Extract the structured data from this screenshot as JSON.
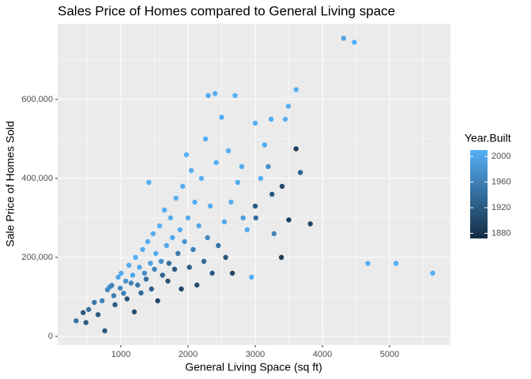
{
  "chart_data": {
    "type": "scatter",
    "title": "Sales Price of Homes compared to General Living space",
    "x_label": "General Living Space (sq ft)",
    "y_label": "Sale Price of Homes Sold",
    "xlim": [
      59,
      5906
    ],
    "ylim": [
      -22000,
      792000
    ],
    "xticks": [
      1000,
      2000,
      3000,
      4000,
      5000
    ],
    "yticks": [
      0,
      {
        "value": 200000,
        "label": "200,000"
      },
      {
        "value": 400000,
        "label": "400,000"
      },
      {
        "value": 600000,
        "label": "600,000"
      }
    ],
    "grid": true,
    "colorbar": {
      "title": "Year.Built",
      "limits": [
        1872,
        2010
      ],
      "ticks": [
        1880,
        1920,
        1960,
        2000
      ],
      "low": "#132B43",
      "high": "#56B1F7"
    },
    "x": [
      334,
      438,
      480,
      520,
      605,
      660,
      720,
      760,
      800,
      832,
      864,
      894,
      912,
      960,
      990,
      1004,
      1040,
      1072,
      1092,
      1120,
      1152,
      1176,
      1200,
      1218,
      1250,
      1276,
      1300,
      1324,
      1352,
      1376,
      1400,
      1416,
      1440,
      1456,
      1480,
      1500,
      1520,
      1548,
      1576,
      1600,
      1620,
      1648,
      1680,
      1700,
      1716,
      1740,
      1768,
      1800,
      1820,
      1850,
      1880,
      1900,
      1920,
      1948,
      1976,
      2000,
      2020,
      2048,
      2076,
      2100,
      2132,
      2160,
      2200,
      2236,
      2260,
      2290,
      2300,
      2330,
      2360,
      2402,
      2420,
      2450,
      2500,
      2540,
      2560,
      2600,
      2640,
      2660,
      2700,
      2740,
      2800,
      2820,
      2880,
      2945,
      3000,
      3082,
      3140,
      3194,
      3238,
      3390,
      3447,
      3493,
      3608,
      3500,
      3608,
      3672,
      3820,
      3400,
      3250,
      4316,
      4476,
      4676,
      5095,
      5642,
      3010,
      3280,
      3000
    ],
    "y": [
      39300,
      60000,
      35000,
      68000,
      86000,
      55000,
      90000,
      14000,
      118000,
      125000,
      129000,
      103000,
      80000,
      150000,
      122000,
      160000,
      109000,
      140000,
      95000,
      180000,
      135000,
      155000,
      62000,
      200000,
      130000,
      175000,
      110000,
      220000,
      160000,
      145000,
      240000,
      390000,
      185000,
      120000,
      260000,
      170000,
      210000,
      90000,
      280000,
      190000,
      155000,
      320000,
      230000,
      140000,
      185000,
      300000,
      250000,
      170000,
      350000,
      210000,
      270000,
      120000,
      380000,
      240000,
      460000,
      300000,
      175000,
      420000,
      220000,
      340000,
      130000,
      280000,
      400000,
      190000,
      500000,
      250000,
      610000,
      330000,
      160000,
      615000,
      440000,
      230000,
      555000,
      290000,
      200000,
      470000,
      340000,
      160000,
      610000,
      390000,
      430000,
      300000,
      270000,
      150000,
      540000,
      400000,
      485000,
      430000,
      550000,
      200000,
      550000,
      583000,
      625000,
      295000,
      475000,
      415000,
      285000,
      380000,
      360000,
      755000,
      745000,
      184750,
      184750,
      160000,
      300000,
      260000,
      330000
    ],
    "year": [
      1946,
      1920,
      1925,
      1948,
      1950,
      1920,
      1960,
      1920,
      1970,
      1975,
      1962,
      1958,
      1925,
      1999,
      1968,
      2005,
      1955,
      1980,
      1915,
      2004,
      1962,
      1998,
      1910,
      2006,
      1950,
      2002,
      1935,
      2007,
      1975,
      1940,
      2005,
      2008,
      1995,
      1925,
      2006,
      1965,
      2003,
      1900,
      2007,
      1972,
      1930,
      2008,
      2000,
      1915,
      1940,
      2006,
      2001,
      1920,
      2008,
      1955,
      2004,
      1900,
      2007,
      1980,
      2009,
      2005,
      1925,
      2008,
      1960,
      2006,
      1910,
      2003,
      2007,
      1935,
      2008,
      1970,
      2006,
      2005,
      1920,
      2008,
      2007,
      1945,
      2009,
      2002,
      1916,
      2006,
      2008,
      1900,
      2008,
      2004,
      2007,
      1990,
      2006,
      2006,
      2008,
      2009,
      2006,
      1975,
      2006,
      1890,
      2008,
      2007,
      2008,
      1892,
      1892,
      1930,
      1900,
      1900,
      1920,
      1996,
      2007,
      2007,
      2008,
      2008,
      1940,
      1965,
      1918
    ]
  }
}
